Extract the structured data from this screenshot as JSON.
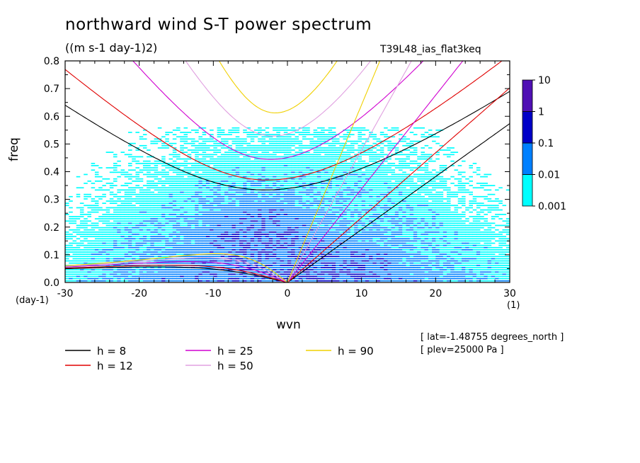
{
  "chart_data": {
    "type": "heatmap",
    "title": "northward wind S-T power spectrum",
    "subtitle": "((m s-1 day-1)2)",
    "run_id": "T39L48_ias_flat3keq",
    "xlabel": "wvn",
    "ylabel": "freq",
    "x_unit": "(1)",
    "y_unit": "(day-1)",
    "xlim": [
      -30,
      30
    ],
    "ylim": [
      0,
      0.8
    ],
    "x_ticks": [
      "-30",
      "-20",
      "-10",
      "0",
      "10",
      "20",
      "30"
    ],
    "y_ticks": [
      "0.0",
      "0.1",
      "0.2",
      "0.3",
      "0.4",
      "0.5",
      "0.6",
      "0.7",
      "0.8"
    ],
    "colorbar": {
      "levels": [
        "0.001",
        "0.01",
        "0.1",
        "1",
        "10"
      ],
      "colors": [
        "#00ffff",
        "#0080ff",
        "#0000c8",
        "#5010b4"
      ]
    },
    "dispersion_curves": [
      {
        "name": "h =  8",
        "h": 8,
        "color": "#000000"
      },
      {
        "name": "h = 12",
        "h": 12,
        "color": "#e00000"
      },
      {
        "name": "h = 25",
        "h": 25,
        "color": "#d000d0"
      },
      {
        "name": "h = 50",
        "h": 50,
        "color": "#e0a0e0"
      },
      {
        "name": "h = 90",
        "h": 90,
        "color": "#f0d000"
      }
    ],
    "annotations": [
      "[ lat=-1.48755 degrees_north ]",
      "[ plev=25000 Pa ]"
    ]
  }
}
